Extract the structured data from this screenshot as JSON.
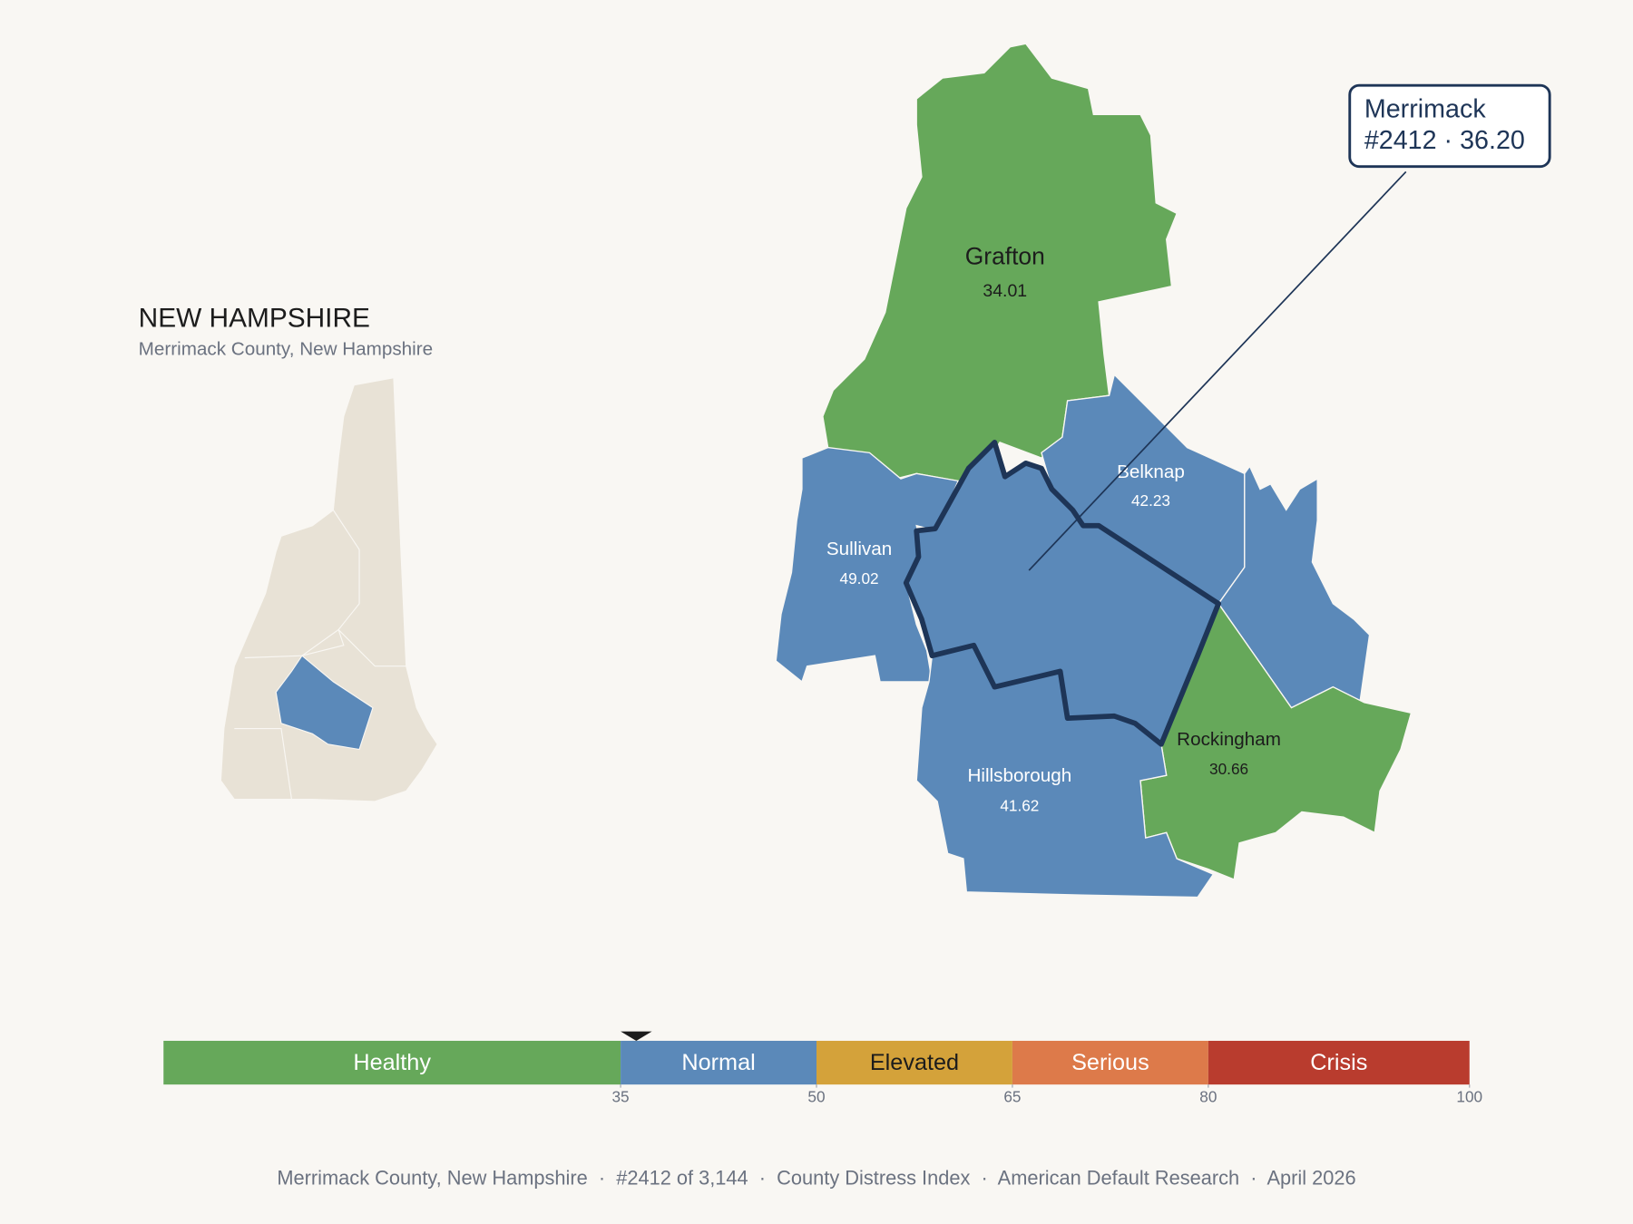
{
  "header": {
    "title": "NEW HAMPSHIRE",
    "subtitle": "Merrimack County, New Hampshire"
  },
  "counties": [
    {
      "name": "Grafton",
      "value": 34.01,
      "color": "#66a85a"
    },
    {
      "name": "Sullivan",
      "value": 49.02,
      "color": "#5b89b9"
    },
    {
      "name": "Belknap",
      "value": 42.23,
      "color": "#5b89b9"
    },
    {
      "name": "Rockingham",
      "value": 30.66,
      "color": "#66a85a"
    },
    {
      "name": "Hillsborough",
      "value": 41.62,
      "color": "#5b89b9"
    }
  ],
  "callout": {
    "name": "Merrimack",
    "detail": "#2412 · 36.20",
    "color": "#5b89b9"
  },
  "scale": {
    "min": 0,
    "max": 100,
    "marker": 36.2,
    "ticks": [
      35,
      50,
      65,
      80,
      100
    ],
    "bands": [
      {
        "label": "Healthy",
        "from": 0,
        "to": 35,
        "color": "#66a85a",
        "text_color": "#ffffff"
      },
      {
        "label": "Normal",
        "from": 35,
        "to": 50,
        "color": "#5b89b9",
        "text_color": "#ffffff"
      },
      {
        "label": "Elevated",
        "from": 50,
        "to": 65,
        "color": "#d4a23a",
        "text_color": "#1c1c1c"
      },
      {
        "label": "Serious",
        "from": 65,
        "to": 80,
        "color": "#dd7a4a",
        "text_color": "#ffffff"
      },
      {
        "label": "Crisis",
        "from": 80,
        "to": 100,
        "color": "#b93c2e",
        "text_color": "#ffffff"
      }
    ]
  },
  "footer": "Merrimack County, New Hampshire  ·  #2412 of 3,144  ·  County Distress Index  ·  American Default Research  ·  April 2026"
}
